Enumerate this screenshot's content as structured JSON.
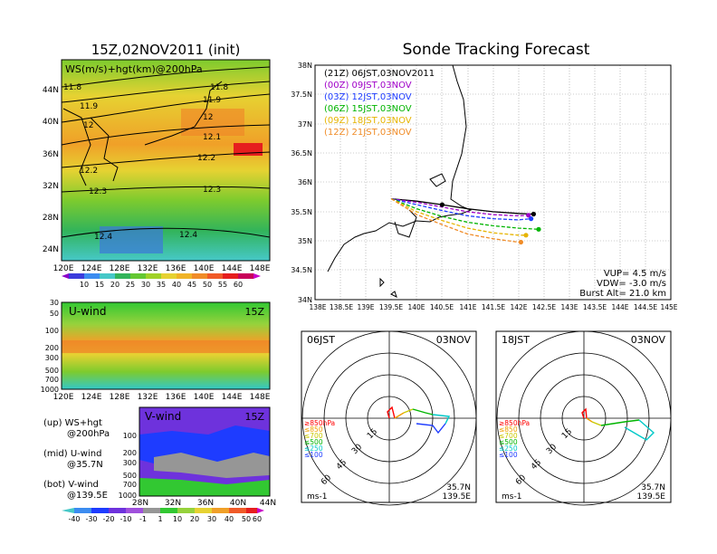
{
  "left_title": "15Z,02NOV2011 (init)",
  "right_title": "Sonde Tracking Forecast",
  "map_panel": {
    "label": "WS(m/s)+hgt(km)@200hPa",
    "yticks": [
      "44N",
      "40N",
      "36N",
      "32N",
      "28N",
      "24N"
    ],
    "xticks": [
      "120E",
      "124E",
      "128E",
      "132E",
      "136E",
      "140E",
      "144E",
      "148E"
    ],
    "contour_labels": [
      "11.8",
      "11.8",
      "11.9",
      "11.9",
      "12",
      "12",
      "12.1",
      "12.2",
      "12.2",
      "12.3",
      "12.3",
      "12.4",
      "12.4"
    ]
  },
  "ws_colorbar": {
    "labels": [
      "10",
      "15",
      "20",
      "25",
      "30",
      "35",
      "40",
      "45",
      "50",
      "55",
      "60"
    ]
  },
  "uwind_panel": {
    "label": "U-wind",
    "time": "15Z",
    "yticks": [
      "30",
      "50",
      "100",
      "200",
      "300",
      "500",
      "700",
      "1000"
    ],
    "xticks": [
      "120E",
      "124E",
      "128E",
      "132E",
      "136E",
      "140E",
      "144E",
      "148E"
    ]
  },
  "vwind_panel": {
    "label": "V-wind",
    "time": "15Z",
    "yticks": [
      "100",
      "200",
      "300",
      "500",
      "700",
      "1000"
    ],
    "xticks": [
      "28N",
      "32N",
      "36N",
      "40N",
      "44N"
    ]
  },
  "legend_notes": [
    {
      "line1": "(up) WS+hgt",
      "line2": "@200hPa"
    },
    {
      "line1": "(mid) U-wind",
      "line2": "@35.7N"
    },
    {
      "line1": "(bot) V-wind",
      "line2": "@139.5E"
    }
  ],
  "wind_colorbar": {
    "labels": [
      "-40",
      "-30",
      "-20",
      "-10",
      "-1",
      "1",
      "10",
      "20",
      "30",
      "40",
      "50",
      "60"
    ]
  },
  "track_panel": {
    "yticks": [
      "38N",
      "37.5N",
      "37N",
      "36.5N",
      "36N",
      "35.5N",
      "35N",
      "34.5N",
      "34N"
    ],
    "xticks": [
      "138E",
      "138.5E",
      "139E",
      "139.5E",
      "140E",
      "140.5E",
      "141E",
      "141.5E",
      "142E",
      "142.5E",
      "143E",
      "143.5E",
      "144E",
      "144.5E",
      "145E"
    ],
    "legend": [
      {
        "text": "(21Z)  06JST,03NOV2011",
        "color": "#000000"
      },
      {
        "text": "(00Z)  09JST,03NOV",
        "color": "#a000c8"
      },
      {
        "text": "(03Z)  12JST,03NOV",
        "color": "#1e3cff"
      },
      {
        "text": "(06Z)  15JST,03NOV",
        "color": "#00b400"
      },
      {
        "text": "(09Z)  18JST,03NOV",
        "color": "#e6b400"
      },
      {
        "text": "(12Z)  21JST,03NOV",
        "color": "#f08c28"
      }
    ],
    "params": [
      "VUP= 4.5 m/s",
      "VDW= -3.0 m/s",
      "Burst Alt= 21.0 km"
    ]
  },
  "hodo_left": {
    "time": "06JST",
    "date": "03NOV",
    "lat": "35.7N",
    "lon": "139.5E",
    "unit": "ms-1",
    "ring_labels": [
      "15",
      "30",
      "45",
      "60"
    ]
  },
  "hodo_right": {
    "time": "18JST",
    "date": "03NOV",
    "lat": "35.7N",
    "lon": "139.5E",
    "unit": "ms-1",
    "ring_labels": [
      "15",
      "30",
      "45",
      "60"
    ]
  },
  "hodo_levels": [
    {
      "text": "≥850hPa",
      "color": "#ff0000"
    },
    {
      "text": "≤850",
      "color": "#f0a000"
    },
    {
      "text": "≤700",
      "color": "#c8c800"
    },
    {
      "text": "≤500",
      "color": "#00b400"
    },
    {
      "text": "≤250",
      "color": "#00c8c8"
    },
    {
      "text": "≤100",
      "color": "#1e3cff"
    }
  ],
  "chart_data": {
    "type": "line",
    "title": "Sonde Tracking Forecast",
    "xlim": [
      138,
      145
    ],
    "ylim": [
      34,
      38
    ],
    "series": [
      {
        "name": "(21Z)  06JST,03NOV2011",
        "color": "#000000",
        "x": [
          139.5,
          140.0,
          140.5,
          141.0,
          141.5,
          142.0,
          142.3
        ],
        "y": [
          35.72,
          35.68,
          35.62,
          35.55,
          35.5,
          35.47,
          35.46
        ]
      },
      {
        "name": "(00Z)  09JST,03NOV",
        "color": "#a000c8",
        "x": [
          139.5,
          140.0,
          140.5,
          141.0,
          141.5,
          142.0,
          142.2
        ],
        "y": [
          35.72,
          35.66,
          35.58,
          35.5,
          35.45,
          35.43,
          35.44
        ]
      },
      {
        "name": "(03Z)  12JST,03NOV",
        "color": "#1e3cff",
        "x": [
          139.5,
          140.0,
          140.5,
          141.0,
          141.5,
          142.0,
          142.25
        ],
        "y": [
          35.72,
          35.62,
          35.52,
          35.43,
          35.38,
          35.36,
          35.38
        ]
      },
      {
        "name": "(06Z)  15JST,03NOV",
        "color": "#00b400",
        "x": [
          139.5,
          140.0,
          140.5,
          141.0,
          141.5,
          142.0,
          142.4
        ],
        "y": [
          35.72,
          35.55,
          35.42,
          35.32,
          35.26,
          35.22,
          35.2
        ]
      },
      {
        "name": "(09Z)  18JST,03NOV",
        "color": "#e6b400",
        "x": [
          139.5,
          140.0,
          140.5,
          141.0,
          141.5,
          142.0,
          142.15
        ],
        "y": [
          35.72,
          35.5,
          35.35,
          35.22,
          35.14,
          35.1,
          35.1
        ]
      },
      {
        "name": "(12Z)  21JST,03NOV",
        "color": "#f08c28",
        "x": [
          139.5,
          140.0,
          140.5,
          141.0,
          141.5,
          142.0,
          142.05
        ],
        "y": [
          35.72,
          35.45,
          35.28,
          35.12,
          35.04,
          34.98,
          34.98
        ]
      }
    ]
  }
}
